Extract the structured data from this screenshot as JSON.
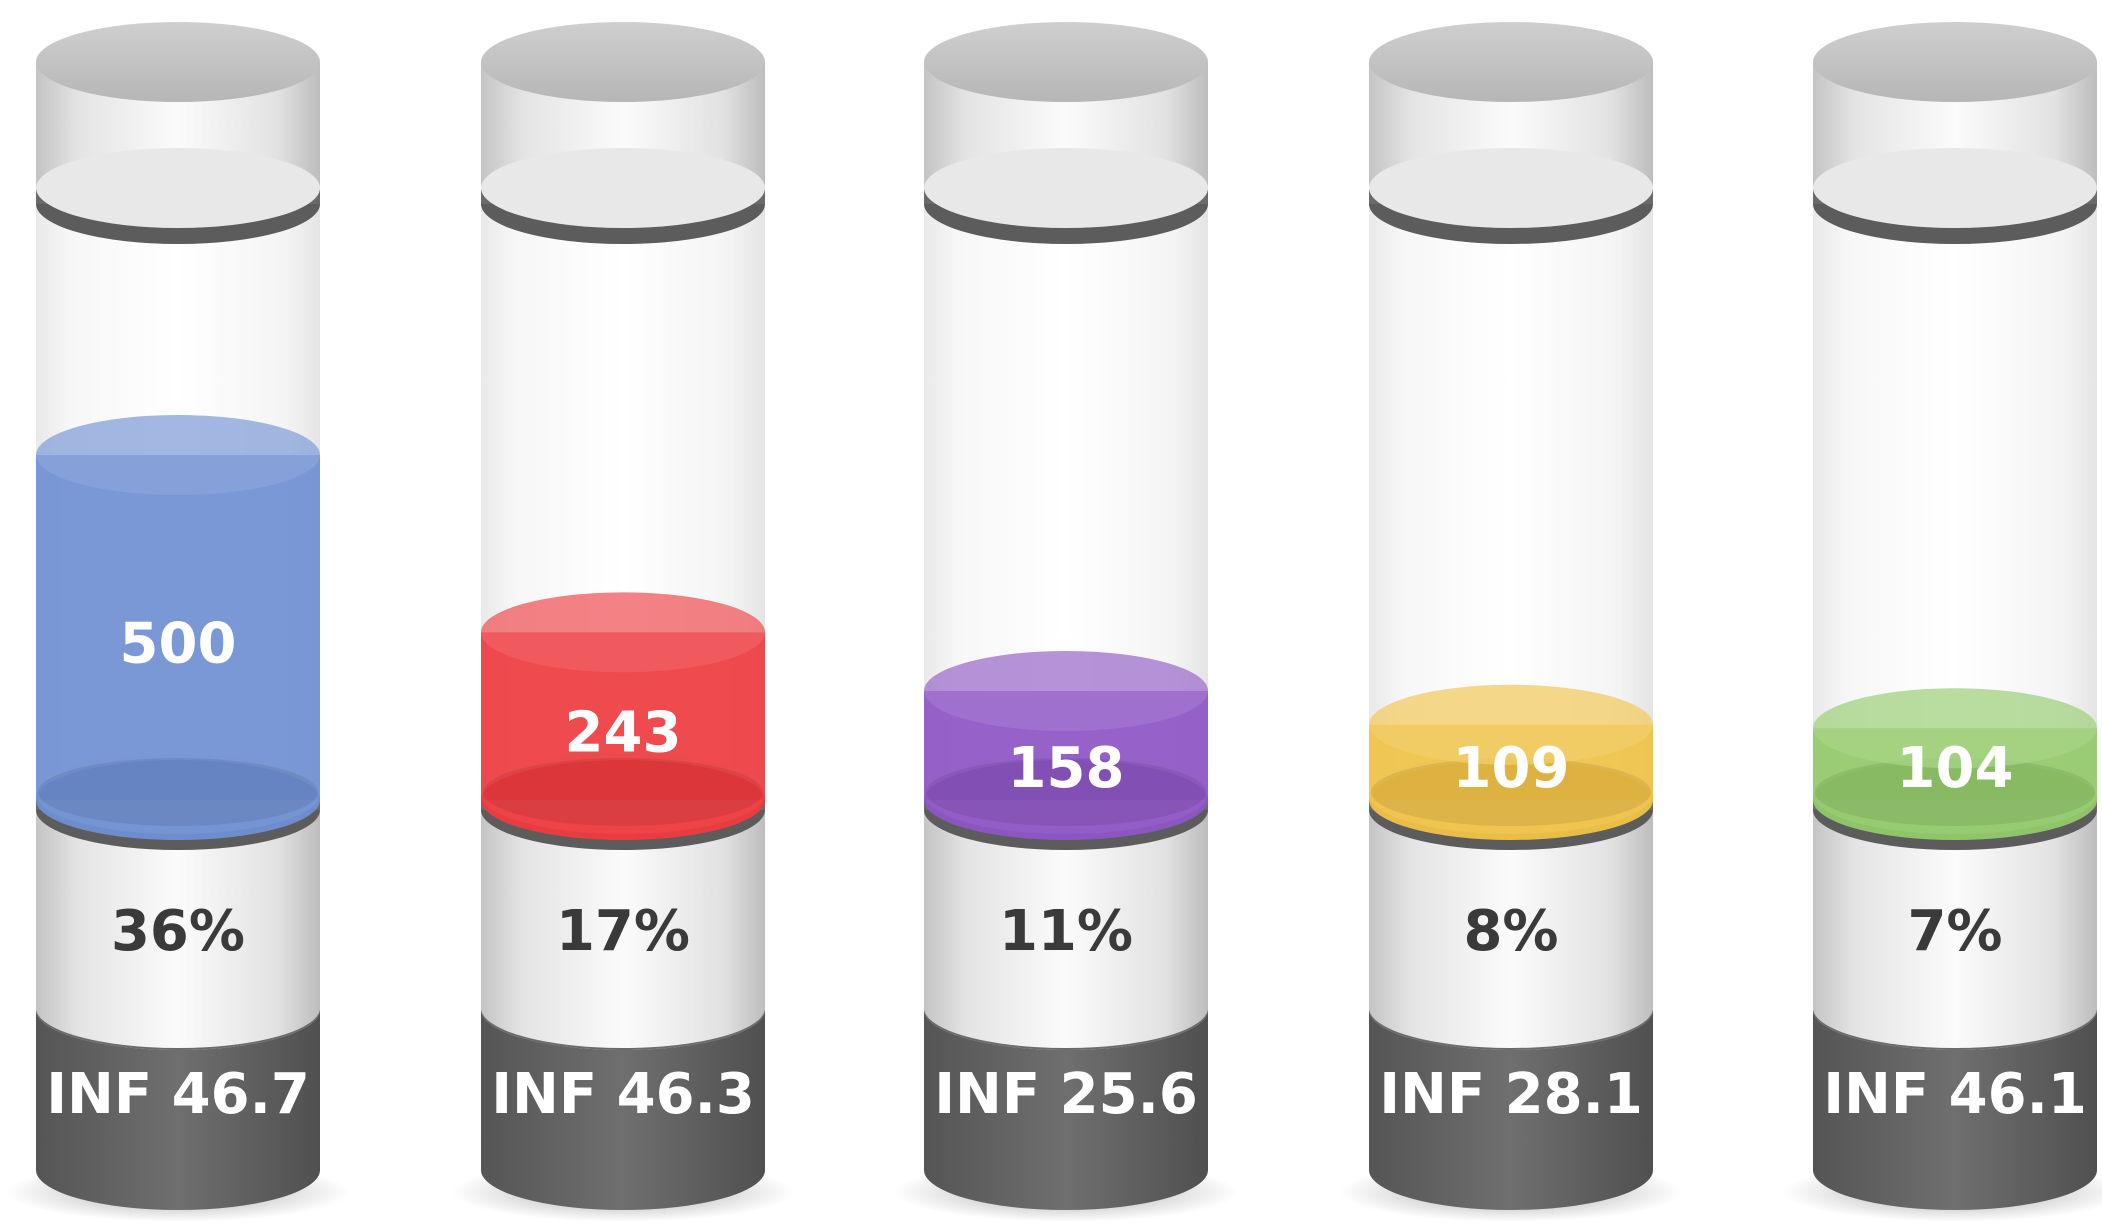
{
  "chart_data": {
    "type": "bar",
    "style": "3d-cylinder-fill",
    "categories": [
      "INF 46.7",
      "INF 46.3",
      "INF 25.6",
      "INF 28.1",
      "INF 46.1"
    ],
    "values": [
      500,
      243,
      158,
      109,
      104
    ],
    "percent_labels": [
      "36%",
      "17%",
      "11%",
      "8%",
      "7%"
    ],
    "colors": [
      "#6f8fd3",
      "#ee3b3f",
      "#8d55c4",
      "#efc247",
      "#92c96a"
    ],
    "title": "",
    "xlabel": "",
    "ylabel": "",
    "ylim": [
      0,
      500
    ],
    "grid": false,
    "legend": "none"
  }
}
